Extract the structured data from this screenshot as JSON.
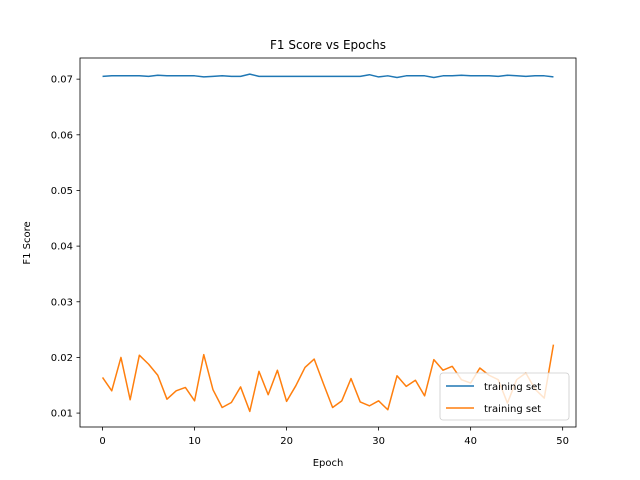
{
  "chart_data": {
    "type": "line",
    "title": "F1 Score vs Epochs",
    "xlabel": "Epoch",
    "ylabel": "F1 Score",
    "xlim": [
      -2.45,
      51.45
    ],
    "ylim": [
      0.0075,
      0.0738
    ],
    "xticks": [
      0,
      10,
      20,
      30,
      40,
      50
    ],
    "yticks": [
      0.01,
      0.02,
      0.03,
      0.04,
      0.05,
      0.06,
      0.07
    ],
    "xtick_labels": [
      "0",
      "10",
      "20",
      "30",
      "40",
      "50"
    ],
    "ytick_labels": [
      "0.01",
      "0.02",
      "0.03",
      "0.04",
      "0.05",
      "0.06",
      "0.07"
    ],
    "grid": false,
    "legend_position": "lower-right",
    "x": [
      0,
      1,
      2,
      3,
      4,
      5,
      6,
      7,
      8,
      9,
      10,
      11,
      12,
      13,
      14,
      15,
      16,
      17,
      18,
      19,
      20,
      21,
      22,
      23,
      24,
      25,
      26,
      27,
      28,
      29,
      30,
      31,
      32,
      33,
      34,
      35,
      36,
      37,
      38,
      39,
      40,
      41,
      42,
      43,
      44,
      45,
      46,
      47,
      48,
      49
    ],
    "series": [
      {
        "name": "training set",
        "color": "#1f77b4",
        "values": [
          0.0705,
          0.0706,
          0.0706,
          0.0706,
          0.0706,
          0.0705,
          0.0707,
          0.0706,
          0.0706,
          0.0706,
          0.0706,
          0.0704,
          0.0705,
          0.0706,
          0.0705,
          0.0705,
          0.0709,
          0.0705,
          0.0705,
          0.0705,
          0.0705,
          0.0705,
          0.0705,
          0.0705,
          0.0705,
          0.0705,
          0.0705,
          0.0705,
          0.0705,
          0.0708,
          0.0704,
          0.0706,
          0.0703,
          0.0706,
          0.0706,
          0.0706,
          0.0703,
          0.0706,
          0.0706,
          0.0707,
          0.0706,
          0.0706,
          0.0706,
          0.0705,
          0.0707,
          0.0706,
          0.0705,
          0.0706,
          0.0706,
          0.0704
        ]
      },
      {
        "name": "training set",
        "color": "#ff7f0e",
        "values": [
          0.0164,
          0.014,
          0.02,
          0.0124,
          0.0204,
          0.0188,
          0.0168,
          0.0125,
          0.014,
          0.0146,
          0.0122,
          0.0205,
          0.0142,
          0.011,
          0.0119,
          0.0147,
          0.0103,
          0.0175,
          0.0133,
          0.0177,
          0.0121,
          0.0149,
          0.0182,
          0.0197,
          0.0153,
          0.011,
          0.0122,
          0.0162,
          0.012,
          0.0113,
          0.0122,
          0.0106,
          0.0167,
          0.0148,
          0.0159,
          0.0131,
          0.0196,
          0.0177,
          0.0184,
          0.016,
          0.0154,
          0.0181,
          0.0168,
          0.016,
          0.0118,
          0.016,
          0.0172,
          0.0143,
          0.0127,
          0.0223
        ]
      }
    ]
  }
}
